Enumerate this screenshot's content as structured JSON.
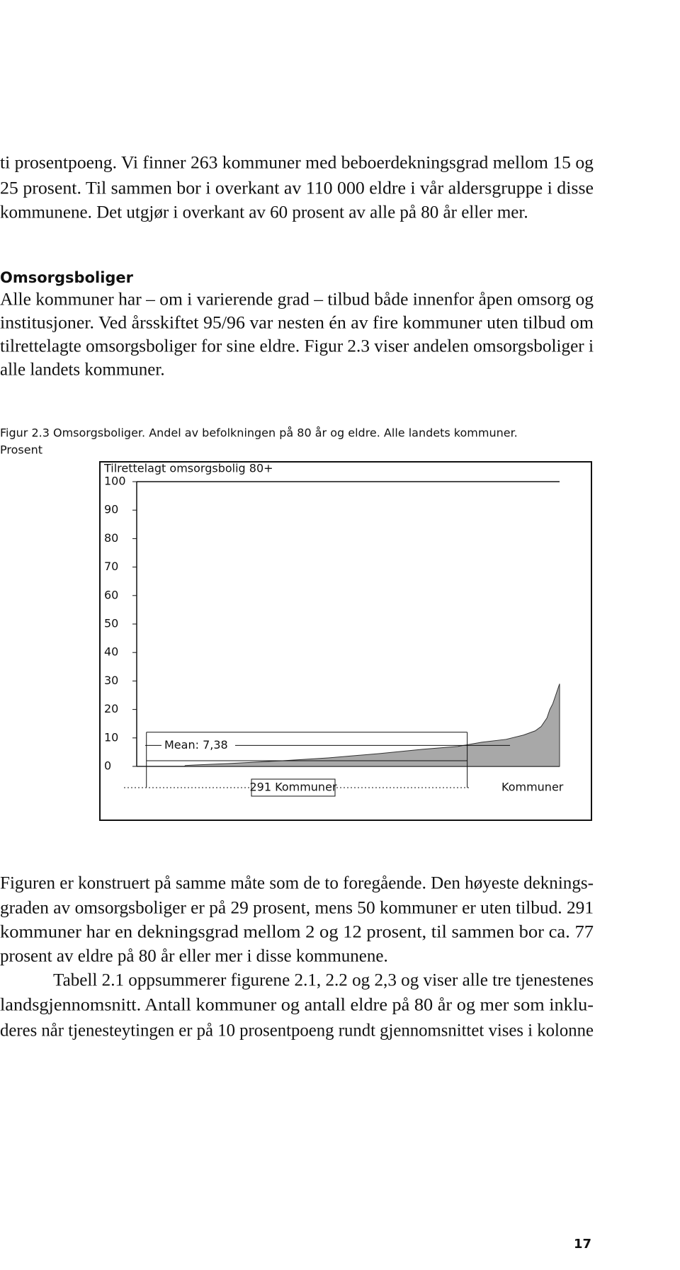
{
  "header_lines": [
    "ti prosentpoeng. Vi finner 263 kommuner med beboerdekningsgrad mellom 15 og",
    "25 prosent. Til sammen bor i overkant av 110 000 eldre i vår aldersgruppe i disse",
    "kommunene. Det utgjør i overkant av 60 prosent av alle på 80 år eller mer."
  ],
  "section": {
    "heading": "Omsorgsboliger",
    "lines": [
      "Alle kommuner har – om i varierende grad – tilbud både innenfor åpen omsorg og",
      "institusjoner. Ved årsskiftet 95/96 var nesten én av fire kommuner uten tilbud om",
      "tilrettelagte omsorgsboliger for sine eldre. Figur 2.3 viser andelen omsorgsboliger i",
      "alle landets kommuner."
    ]
  },
  "figure": {
    "caption": [
      "Figur 2.3 Omsorgsboliger. Andel av befolkningen på 80 år og eldre. Alle landets kommuner.",
      "Prosent"
    ],
    "chart_data": {
      "type": "area",
      "ylabel": "Tilrettelagt omsorgsbolig 80+",
      "xlabel": "Kommuner",
      "x": [
        0,
        49,
        50,
        60,
        94,
        150,
        197,
        250,
        294,
        330,
        355,
        380,
        398,
        410,
        416,
        422,
        425,
        428,
        431,
        433,
        435
      ],
      "values": [
        0,
        0,
        0.3,
        0.5,
        1,
        2,
        3,
        4.5,
        6,
        7,
        8.5,
        9.5,
        11,
        12.5,
        14,
        17,
        20,
        22,
        25,
        27,
        29
      ],
      "color": "#a8a8a8",
      "xlim": [
        0,
        435
      ],
      "ylim": [
        0,
        100
      ],
      "yticks": [
        0,
        10,
        20,
        30,
        40,
        50,
        60,
        70,
        80,
        90,
        100
      ],
      "mean": {
        "value": 7.38,
        "label": "Mean: 7,38"
      },
      "band": {
        "ylim": [
          2,
          12
        ],
        "xlim": [
          10,
          340
        ],
        "label": "291 Kommuner"
      }
    }
  },
  "body_lines": [
    "Figuren er konstruert på samme måte som de to foregående. Den høyeste deknings-",
    "graden av omsorgsboliger er på 29 prosent, mens 50 kommuner er uten tilbud. 291",
    "kommuner har en dekningsgrad mellom  2 og 12 prosent, til sammen bor ca. 77",
    "prosent av eldre på 80 år eller mer i disse kommunene.",
    "Tabell 2.1 oppsummerer figurene 2.1, 2.2 og 2,3 og viser alle tre tjenestenes",
    "landsgjennomsnitt. Antall kommuner og antall eldre på 80 år og mer som inklu-",
    "deres når tjenesteytingen er på 10 prosentpoeng rundt gjennomsnittet vises i kolonne"
  ],
  "page_number": "17"
}
